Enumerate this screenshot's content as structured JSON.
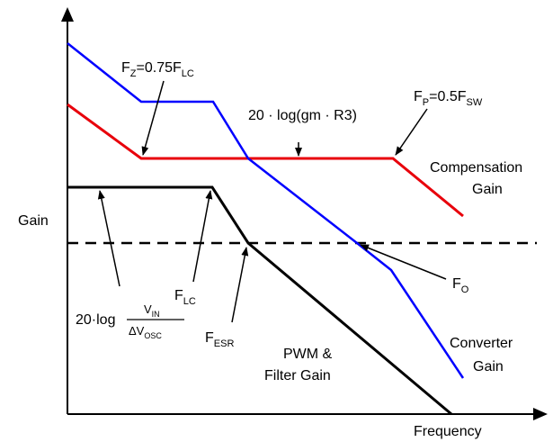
{
  "axes": {
    "y_label": "Gain",
    "x_label": "Frequency"
  },
  "curves": {
    "compensation": {
      "color": "#e8000b"
    },
    "converter": {
      "color": "#0000ff"
    },
    "pwm_filter": {
      "color": "#000000"
    },
    "crossover": {
      "color": "#000000",
      "style": "dashed"
    }
  },
  "labels": {
    "fz": {
      "prefix": "F",
      "sub": "Z",
      "mid": "=0.75F",
      "sub2": "LC"
    },
    "fp": {
      "prefix": "F",
      "sub": "P",
      "mid": "=0.5F",
      "sub2": "SW"
    },
    "mid_gain": "20 · log(gm · R3)",
    "comp_gain_1": "Compensation",
    "comp_gain_2": "Gain",
    "flc": {
      "prefix": "F",
      "sub": "LC"
    },
    "fo": {
      "prefix": "F",
      "sub": "O"
    },
    "fesr": {
      "prefix": "F",
      "sub": "ESR"
    },
    "dc_gain": {
      "prefix": "20·log",
      "num": "V",
      "num_sub": "IN",
      "den": "ΔV",
      "den_sub": "OSC"
    },
    "pwm_1": "PWM &",
    "pwm_2": "Filter Gain",
    "conv_1": "Converter",
    "conv_2": "Gain"
  }
}
